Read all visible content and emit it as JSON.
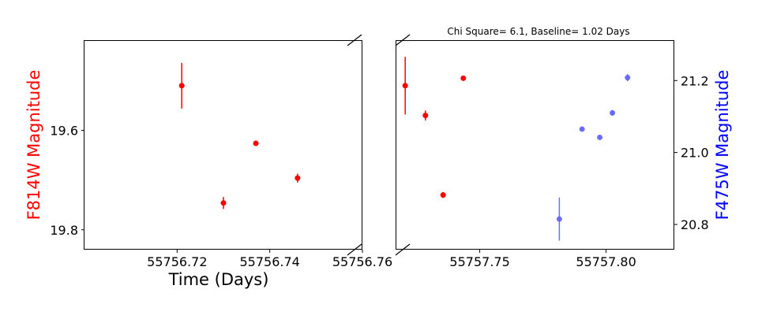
{
  "chart_data": {
    "type": "scatter",
    "title": "Chi Square= 6.1, Baseline= 1.02 Days",
    "xlabel": "Time (Days)",
    "ylabel_left": "F814W Magnitude",
    "ylabel_right": "F475W Magnitude",
    "panels": [
      {
        "name": "left",
        "xlim": [
          55756.7,
          55756.76
        ],
        "ylim": [
          19.84,
          19.42
        ],
        "x_ticks": [
          55756.72,
          55756.74,
          55756.76
        ],
        "x_tick_labels": [
          "55756.72",
          "55756.74",
          "55756.76"
        ],
        "y_ticks": [
          19.6,
          19.8
        ],
        "y_tick_labels": [
          "19.6",
          "19.8"
        ],
        "series": [
          {
            "axis": "left",
            "color": "#ff0000",
            "points": [
              {
                "x": 55756.721,
                "y": 19.51,
                "err": 0.046
              },
              {
                "x": 55756.73,
                "y": 19.746,
                "err": 0.012
              },
              {
                "x": 55756.737,
                "y": 19.626,
                "err": 0.005
              },
              {
                "x": 55756.746,
                "y": 19.696,
                "err": 0.009
              }
            ]
          }
        ]
      },
      {
        "name": "right",
        "xlim": [
          55757.717,
          55757.827
        ],
        "ylim": [
          20.73,
          21.31
        ],
        "x_ticks": [
          55757.75,
          55757.8
        ],
        "x_tick_labels": [
          "55757.75",
          "55757.80"
        ],
        "y_ticks": [
          20.8,
          21.0,
          21.2
        ],
        "y_tick_labels": [
          "20.8",
          "21.0",
          "21.2"
        ],
        "series": [
          {
            "axis": "left",
            "left_ylim": [
              19.84,
              19.42
            ],
            "color": "#ff0000",
            "points": [
              {
                "x": 55757.7205,
                "y": 19.51,
                "err": 0.058
              },
              {
                "x": 55757.7285,
                "y": 19.57,
                "err": 0.01
              },
              {
                "x": 55757.7355,
                "y": 19.73,
                "err": 0.006
              },
              {
                "x": 55757.7435,
                "y": 19.495,
                "err": 0.005
              }
            ]
          },
          {
            "axis": "right",
            "color": "#6060ff",
            "points": [
              {
                "x": 55757.7815,
                "y": 20.815,
                "err": 0.06
              },
              {
                "x": 55757.7905,
                "y": 21.065,
                "err": 0.004
              },
              {
                "x": 55757.7975,
                "y": 21.042,
                "err": 0.006
              },
              {
                "x": 55757.8025,
                "y": 21.11,
                "err": 0.008
              },
              {
                "x": 55757.8085,
                "y": 21.208,
                "err": 0.01
              }
            ]
          }
        ]
      }
    ],
    "label_colors": {
      "left": "#ff0000",
      "right": "#0000ff"
    },
    "grid": false
  }
}
